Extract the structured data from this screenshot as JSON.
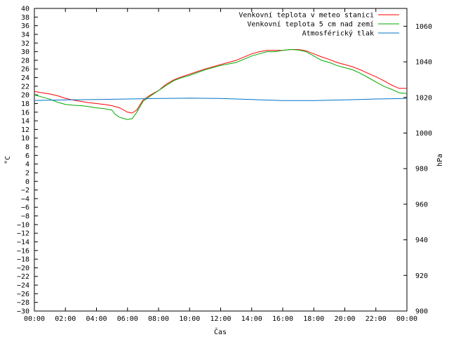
{
  "chart_data": {
    "type": "line",
    "xlabel": "Čas",
    "ylabel": "°C",
    "y2label": "hPa",
    "x_ticks": [
      "00:00",
      "02:00",
      "04:00",
      "06:00",
      "08:00",
      "10:00",
      "12:00",
      "14:00",
      "16:00",
      "18:00",
      "20:00",
      "22:00",
      "00:00"
    ],
    "xlim_hours": [
      0,
      24
    ],
    "ylim": [
      -30,
      40
    ],
    "y_ticks": [
      40,
      38,
      36,
      34,
      32,
      30,
      28,
      26,
      24,
      22,
      20,
      18,
      16,
      14,
      12,
      10,
      8,
      6,
      4,
      2,
      0,
      -2,
      -4,
      -6,
      -8,
      -10,
      -12,
      -14,
      -16,
      -18,
      -20,
      -22,
      -24,
      -26,
      -28,
      -30
    ],
    "y2lim": [
      900,
      1070
    ],
    "y2_ticks": [
      1060,
      1040,
      1020,
      1000,
      980,
      960,
      940,
      920,
      900
    ],
    "legend_position": "top-right",
    "grid": false,
    "series": [
      {
        "name": "Venkovní teplota v meteo stanici",
        "axis": "left",
        "color": "#ff0000",
        "x": [
          0,
          0.5,
          1,
          1.5,
          2,
          2.5,
          3,
          3.5,
          4,
          4.5,
          5,
          5.5,
          6,
          6.3,
          6.6,
          7,
          7.5,
          8,
          8.5,
          9,
          9.5,
          10,
          11,
          12,
          13,
          14,
          14.5,
          15,
          15.5,
          16,
          16.5,
          17,
          17.5,
          18,
          18.5,
          19,
          19.5,
          20,
          20.5,
          21,
          21.5,
          22,
          22.5,
          23,
          23.5,
          24
        ],
        "y": [
          20.8,
          20.5,
          20.2,
          19.8,
          19.2,
          18.8,
          18.5,
          18.2,
          18.0,
          17.8,
          17.5,
          17.0,
          16.0,
          15.8,
          16.5,
          18.8,
          20.0,
          21.0,
          22.5,
          23.5,
          24.2,
          24.8,
          26.0,
          27.0,
          28.0,
          29.5,
          30.0,
          30.3,
          30.3,
          30.3,
          30.5,
          30.5,
          30.2,
          29.5,
          28.8,
          28.2,
          27.5,
          27.0,
          26.5,
          25.8,
          25.0,
          24.2,
          23.3,
          22.3,
          21.5,
          21.5
        ]
      },
      {
        "name": "Venkovní teplota 5 cm nad zemí",
        "axis": "left",
        "color": "#00aa00",
        "x": [
          0,
          0.5,
          1,
          1.5,
          2,
          2.5,
          3,
          3.5,
          4,
          4.5,
          5,
          5.2,
          5.5,
          5.8,
          6,
          6.3,
          6.6,
          7,
          7.5,
          8,
          8.5,
          9,
          9.5,
          10,
          11,
          12,
          13,
          14,
          14.5,
          15,
          15.5,
          16,
          16.5,
          17,
          17.5,
          18,
          18.5,
          19,
          19.5,
          20,
          20.5,
          21,
          21.5,
          22,
          22.5,
          23,
          23.5,
          24
        ],
        "y": [
          20.0,
          19.5,
          19.0,
          18.3,
          17.8,
          17.6,
          17.5,
          17.3,
          17.0,
          16.8,
          16.5,
          15.5,
          14.8,
          14.5,
          14.3,
          14.5,
          16.0,
          18.5,
          19.8,
          21.0,
          22.2,
          23.3,
          24.0,
          24.5,
          25.8,
          26.8,
          27.5,
          29.0,
          29.5,
          30.0,
          30.0,
          30.3,
          30.5,
          30.4,
          30.0,
          29.0,
          28.0,
          27.5,
          26.8,
          26.3,
          25.8,
          25.0,
          24.0,
          23.0,
          22.0,
          21.3,
          20.5,
          20.3
        ]
      },
      {
        "name": "Atmosférický tlak",
        "axis": "right",
        "color": "#0073c8",
        "x": [
          0,
          2,
          4,
          6,
          8,
          10,
          12,
          14,
          16,
          18,
          20,
          22,
          24
        ],
        "y": [
          1018.3,
          1018.6,
          1018.8,
          1019.1,
          1019.4,
          1019.6,
          1019.4,
          1018.8,
          1018.2,
          1018.2,
          1018.6,
          1019.1,
          1019.4
        ]
      }
    ]
  }
}
